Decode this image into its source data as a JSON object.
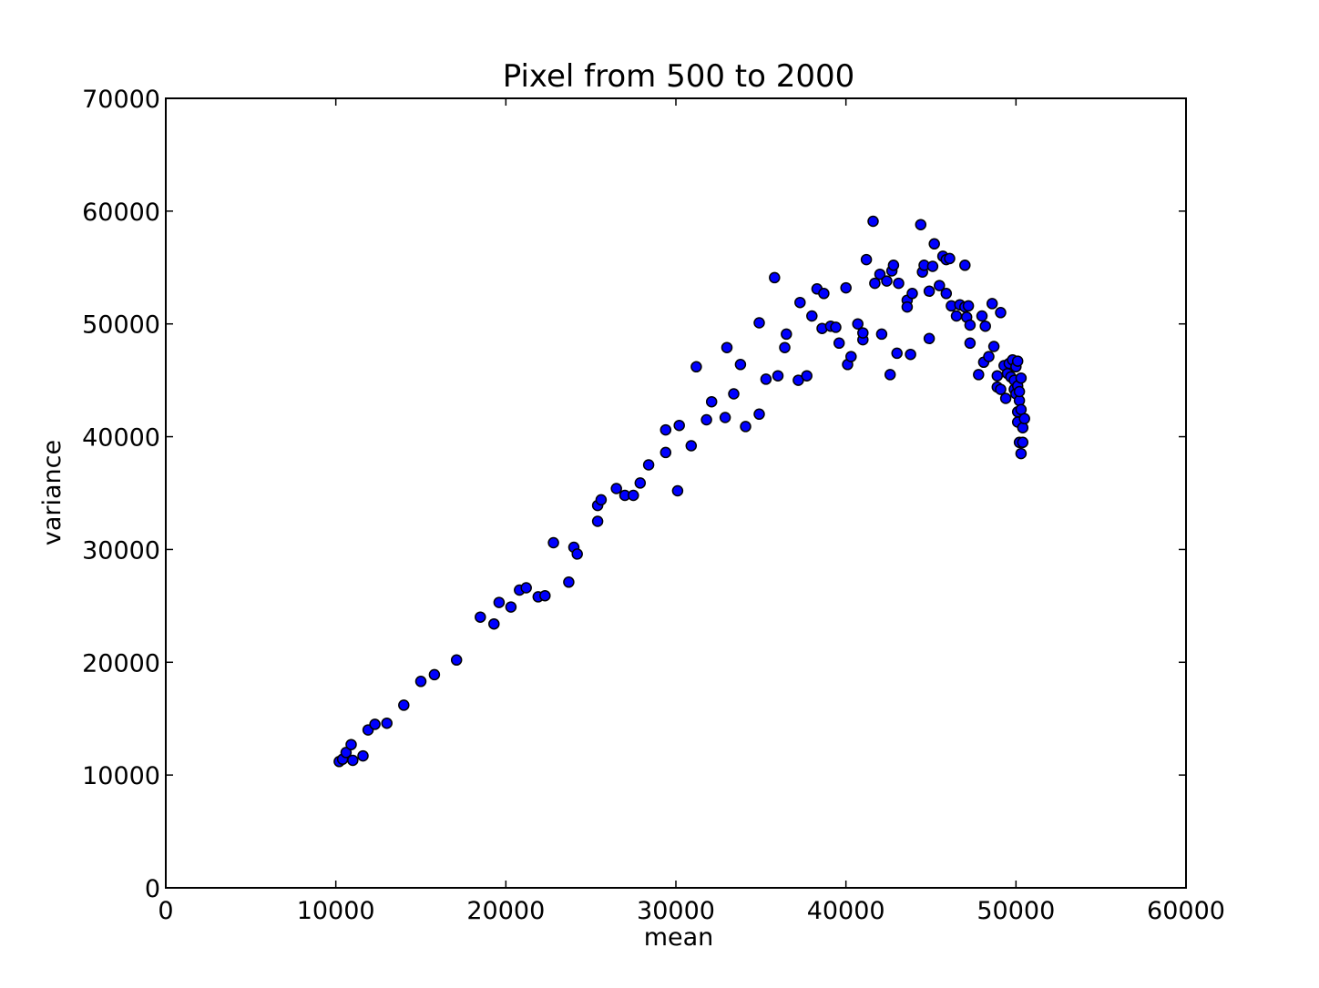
{
  "chart_data": {
    "type": "scatter",
    "title": "Pixel from 500 to 2000",
    "xlabel": "mean",
    "ylabel": "variance",
    "xlim": [
      0,
      60000
    ],
    "ylim": [
      0,
      70000
    ],
    "xticks": [
      0,
      10000,
      20000,
      30000,
      40000,
      50000,
      60000
    ],
    "xtick_labels": [
      "0",
      "10000",
      "20000",
      "30000",
      "40000",
      "50000",
      "60000"
    ],
    "yticks": [
      0,
      10000,
      20000,
      30000,
      40000,
      50000,
      60000,
      70000
    ],
    "ytick_labels": [
      "0",
      "10000",
      "20000",
      "30000",
      "40000",
      "50000",
      "60000",
      "70000"
    ],
    "grid": false,
    "marker_color": "#0000ff",
    "marker_edge_color": "#000000",
    "points": [
      [
        10200,
        11200
      ],
      [
        10400,
        11400
      ],
      [
        10600,
        12000
      ],
      [
        10900,
        12700
      ],
      [
        11000,
        11300
      ],
      [
        11600,
        11700
      ],
      [
        11900,
        14000
      ],
      [
        12300,
        14500
      ],
      [
        13000,
        14600
      ],
      [
        14000,
        16200
      ],
      [
        15000,
        18300
      ],
      [
        15800,
        18900
      ],
      [
        17100,
        20200
      ],
      [
        18500,
        24000
      ],
      [
        19300,
        23400
      ],
      [
        19600,
        25300
      ],
      [
        20300,
        24900
      ],
      [
        20800,
        26400
      ],
      [
        21200,
        26600
      ],
      [
        21900,
        25800
      ],
      [
        22300,
        25900
      ],
      [
        22800,
        30600
      ],
      [
        23700,
        27100
      ],
      [
        24000,
        30200
      ],
      [
        24200,
        29600
      ],
      [
        25400,
        32500
      ],
      [
        25400,
        33900
      ],
      [
        25600,
        34400
      ],
      [
        26500,
        35400
      ],
      [
        27000,
        34800
      ],
      [
        27500,
        34800
      ],
      [
        27900,
        35900
      ],
      [
        28400,
        37500
      ],
      [
        29400,
        40600
      ],
      [
        29400,
        38600
      ],
      [
        30100,
        35200
      ],
      [
        30200,
        41000
      ],
      [
        30900,
        39200
      ],
      [
        31200,
        46200
      ],
      [
        31800,
        41500
      ],
      [
        32100,
        43100
      ],
      [
        32900,
        41700
      ],
      [
        33000,
        47900
      ],
      [
        33400,
        43800
      ],
      [
        33800,
        46400
      ],
      [
        34100,
        40900
      ],
      [
        34900,
        42000
      ],
      [
        34900,
        50100
      ],
      [
        35300,
        45100
      ],
      [
        35800,
        54100
      ],
      [
        36000,
        45400
      ],
      [
        36400,
        47900
      ],
      [
        36500,
        49100
      ],
      [
        37200,
        45000
      ],
      [
        37300,
        51900
      ],
      [
        37700,
        45400
      ],
      [
        38000,
        50700
      ],
      [
        38300,
        53100
      ],
      [
        38600,
        49600
      ],
      [
        38700,
        52700
      ],
      [
        39100,
        49800
      ],
      [
        39400,
        49700
      ],
      [
        39600,
        48300
      ],
      [
        40000,
        53200
      ],
      [
        40100,
        46400
      ],
      [
        40300,
        47100
      ],
      [
        40700,
        50000
      ],
      [
        41000,
        48600
      ],
      [
        41000,
        49200
      ],
      [
        41200,
        55700
      ],
      [
        41600,
        59100
      ],
      [
        41700,
        53600
      ],
      [
        42000,
        54400
      ],
      [
        42100,
        49100
      ],
      [
        42400,
        53800
      ],
      [
        42600,
        45500
      ],
      [
        42700,
        54700
      ],
      [
        42800,
        55200
      ],
      [
        43000,
        47400
      ],
      [
        43100,
        53600
      ],
      [
        43600,
        52100
      ],
      [
        43600,
        51500
      ],
      [
        43800,
        47300
      ],
      [
        43900,
        52700
      ],
      [
        44400,
        58800
      ],
      [
        44500,
        54600
      ],
      [
        44600,
        55200
      ],
      [
        44900,
        52900
      ],
      [
        44900,
        48700
      ],
      [
        45100,
        55100
      ],
      [
        45200,
        57100
      ],
      [
        45500,
        53400
      ],
      [
        45700,
        56000
      ],
      [
        45900,
        55700
      ],
      [
        45900,
        52700
      ],
      [
        46100,
        55800
      ],
      [
        46200,
        51600
      ],
      [
        46500,
        50700
      ],
      [
        46700,
        51700
      ],
      [
        47000,
        55200
      ],
      [
        47000,
        51500
      ],
      [
        47100,
        50600
      ],
      [
        47200,
        51600
      ],
      [
        47300,
        48300
      ],
      [
        47300,
        49900
      ],
      [
        47800,
        45500
      ],
      [
        48000,
        50700
      ],
      [
        48100,
        46600
      ],
      [
        48200,
        49800
      ],
      [
        48400,
        47100
      ],
      [
        48600,
        51800
      ],
      [
        48700,
        48000
      ],
      [
        48900,
        45400
      ],
      [
        48900,
        44400
      ],
      [
        49100,
        51000
      ],
      [
        49100,
        44200
      ],
      [
        49300,
        46300
      ],
      [
        49400,
        43400
      ],
      [
        49500,
        45600
      ],
      [
        49600,
        46500
      ],
      [
        49700,
        45300
      ],
      [
        49800,
        46800
      ],
      [
        49900,
        45000
      ],
      [
        49900,
        44200
      ],
      [
        50000,
        46200
      ],
      [
        50000,
        43800
      ],
      [
        50100,
        46700
      ],
      [
        50100,
        44500
      ],
      [
        50100,
        42200
      ],
      [
        50100,
        41300
      ],
      [
        50200,
        39500
      ],
      [
        50200,
        43200
      ],
      [
        50200,
        44000
      ],
      [
        50300,
        38500
      ],
      [
        50300,
        45200
      ],
      [
        50300,
        42400
      ],
      [
        50400,
        40800
      ],
      [
        50400,
        39500
      ],
      [
        50500,
        41600
      ]
    ]
  }
}
